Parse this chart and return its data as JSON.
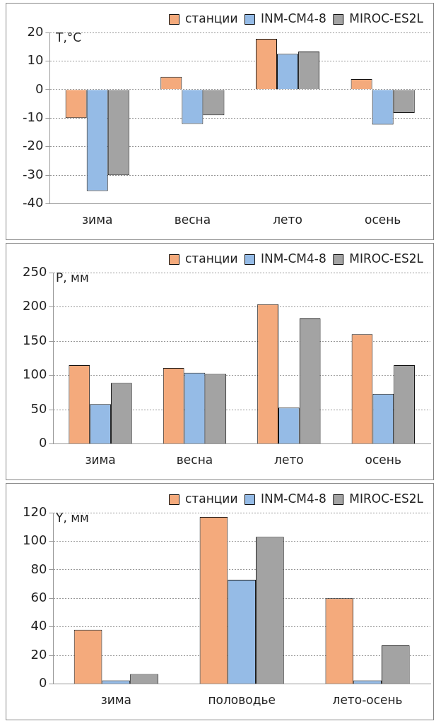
{
  "chart_data": [
    {
      "type": "bar",
      "ylabel": "T,°C",
      "categories": [
        "зима",
        "весна",
        "лето",
        "осень"
      ],
      "ylim": [
        -40,
        20
      ],
      "yticks": [
        -40,
        -30,
        -20,
        -10,
        0,
        10,
        20
      ],
      "grid": "y",
      "legend": "top right",
      "series": [
        {
          "name": "станции",
          "color": "#f4aa7c",
          "values": [
            -10,
            4.5,
            17.8,
            3.7
          ]
        },
        {
          "name": "INM-CM4-8",
          "color": "#95bbe6",
          "values": [
            -35.5,
            -12,
            12.5,
            -12.3
          ]
        },
        {
          "name": "MIROC-ES2L",
          "color": "#a3a3a3",
          "values": [
            -30,
            -9,
            13.3,
            -8.2
          ]
        }
      ]
    },
    {
      "type": "bar",
      "ylabel": "P, мм",
      "categories": [
        "зима",
        "весна",
        "лето",
        "осень"
      ],
      "ylim": [
        0,
        250
      ],
      "yticks": [
        0,
        50,
        100,
        150,
        200,
        250
      ],
      "grid": "y",
      "legend": "top right",
      "series": [
        {
          "name": "станции",
          "color": "#f4aa7c",
          "values": [
            115,
            111,
            204,
            160
          ]
        },
        {
          "name": "INM-CM4-8",
          "color": "#95bbe6",
          "values": [
            58,
            104,
            53,
            73
          ]
        },
        {
          "name": "MIROC-ES2L",
          "color": "#a3a3a3",
          "values": [
            89,
            102,
            183,
            115
          ]
        }
      ]
    },
    {
      "type": "bar",
      "ylabel": "Y, мм",
      "categories": [
        "зима",
        "половодье",
        "лето-осень"
      ],
      "ylim": [
        0,
        120
      ],
      "yticks": [
        0,
        20,
        40,
        60,
        80,
        100,
        120
      ],
      "grid": "y",
      "legend": "top right",
      "series": [
        {
          "name": "станции",
          "color": "#f4aa7c",
          "values": [
            38,
            117,
            60
          ]
        },
        {
          "name": "INM-CM4-8",
          "color": "#95bbe6",
          "values": [
            2.5,
            73,
            2.5
          ]
        },
        {
          "name": "MIROC-ES2L",
          "color": "#a3a3a3",
          "values": [
            7,
            103,
            27
          ]
        }
      ]
    }
  ]
}
